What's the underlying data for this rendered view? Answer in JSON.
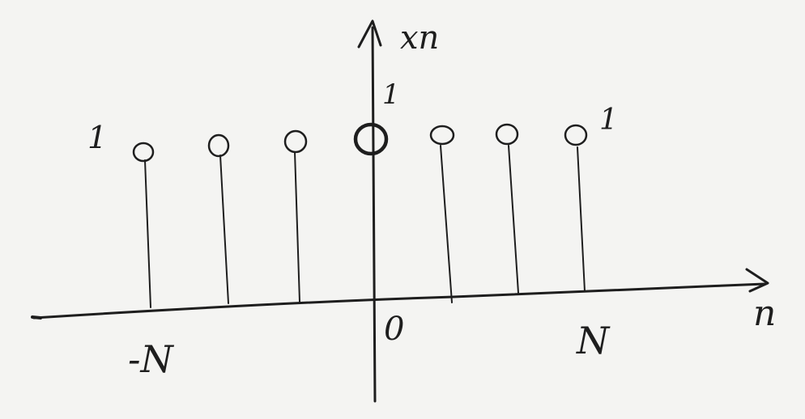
{
  "diagram": {
    "type": "stem plot sketch (handwritten)",
    "axes": {
      "y_label": "xn",
      "x_label": "n",
      "x_ticks": [
        "-N",
        "0",
        "N"
      ]
    },
    "stems": {
      "count": 7,
      "value": 1,
      "value_labels": [
        "1",
        "1",
        "1"
      ]
    }
  }
}
